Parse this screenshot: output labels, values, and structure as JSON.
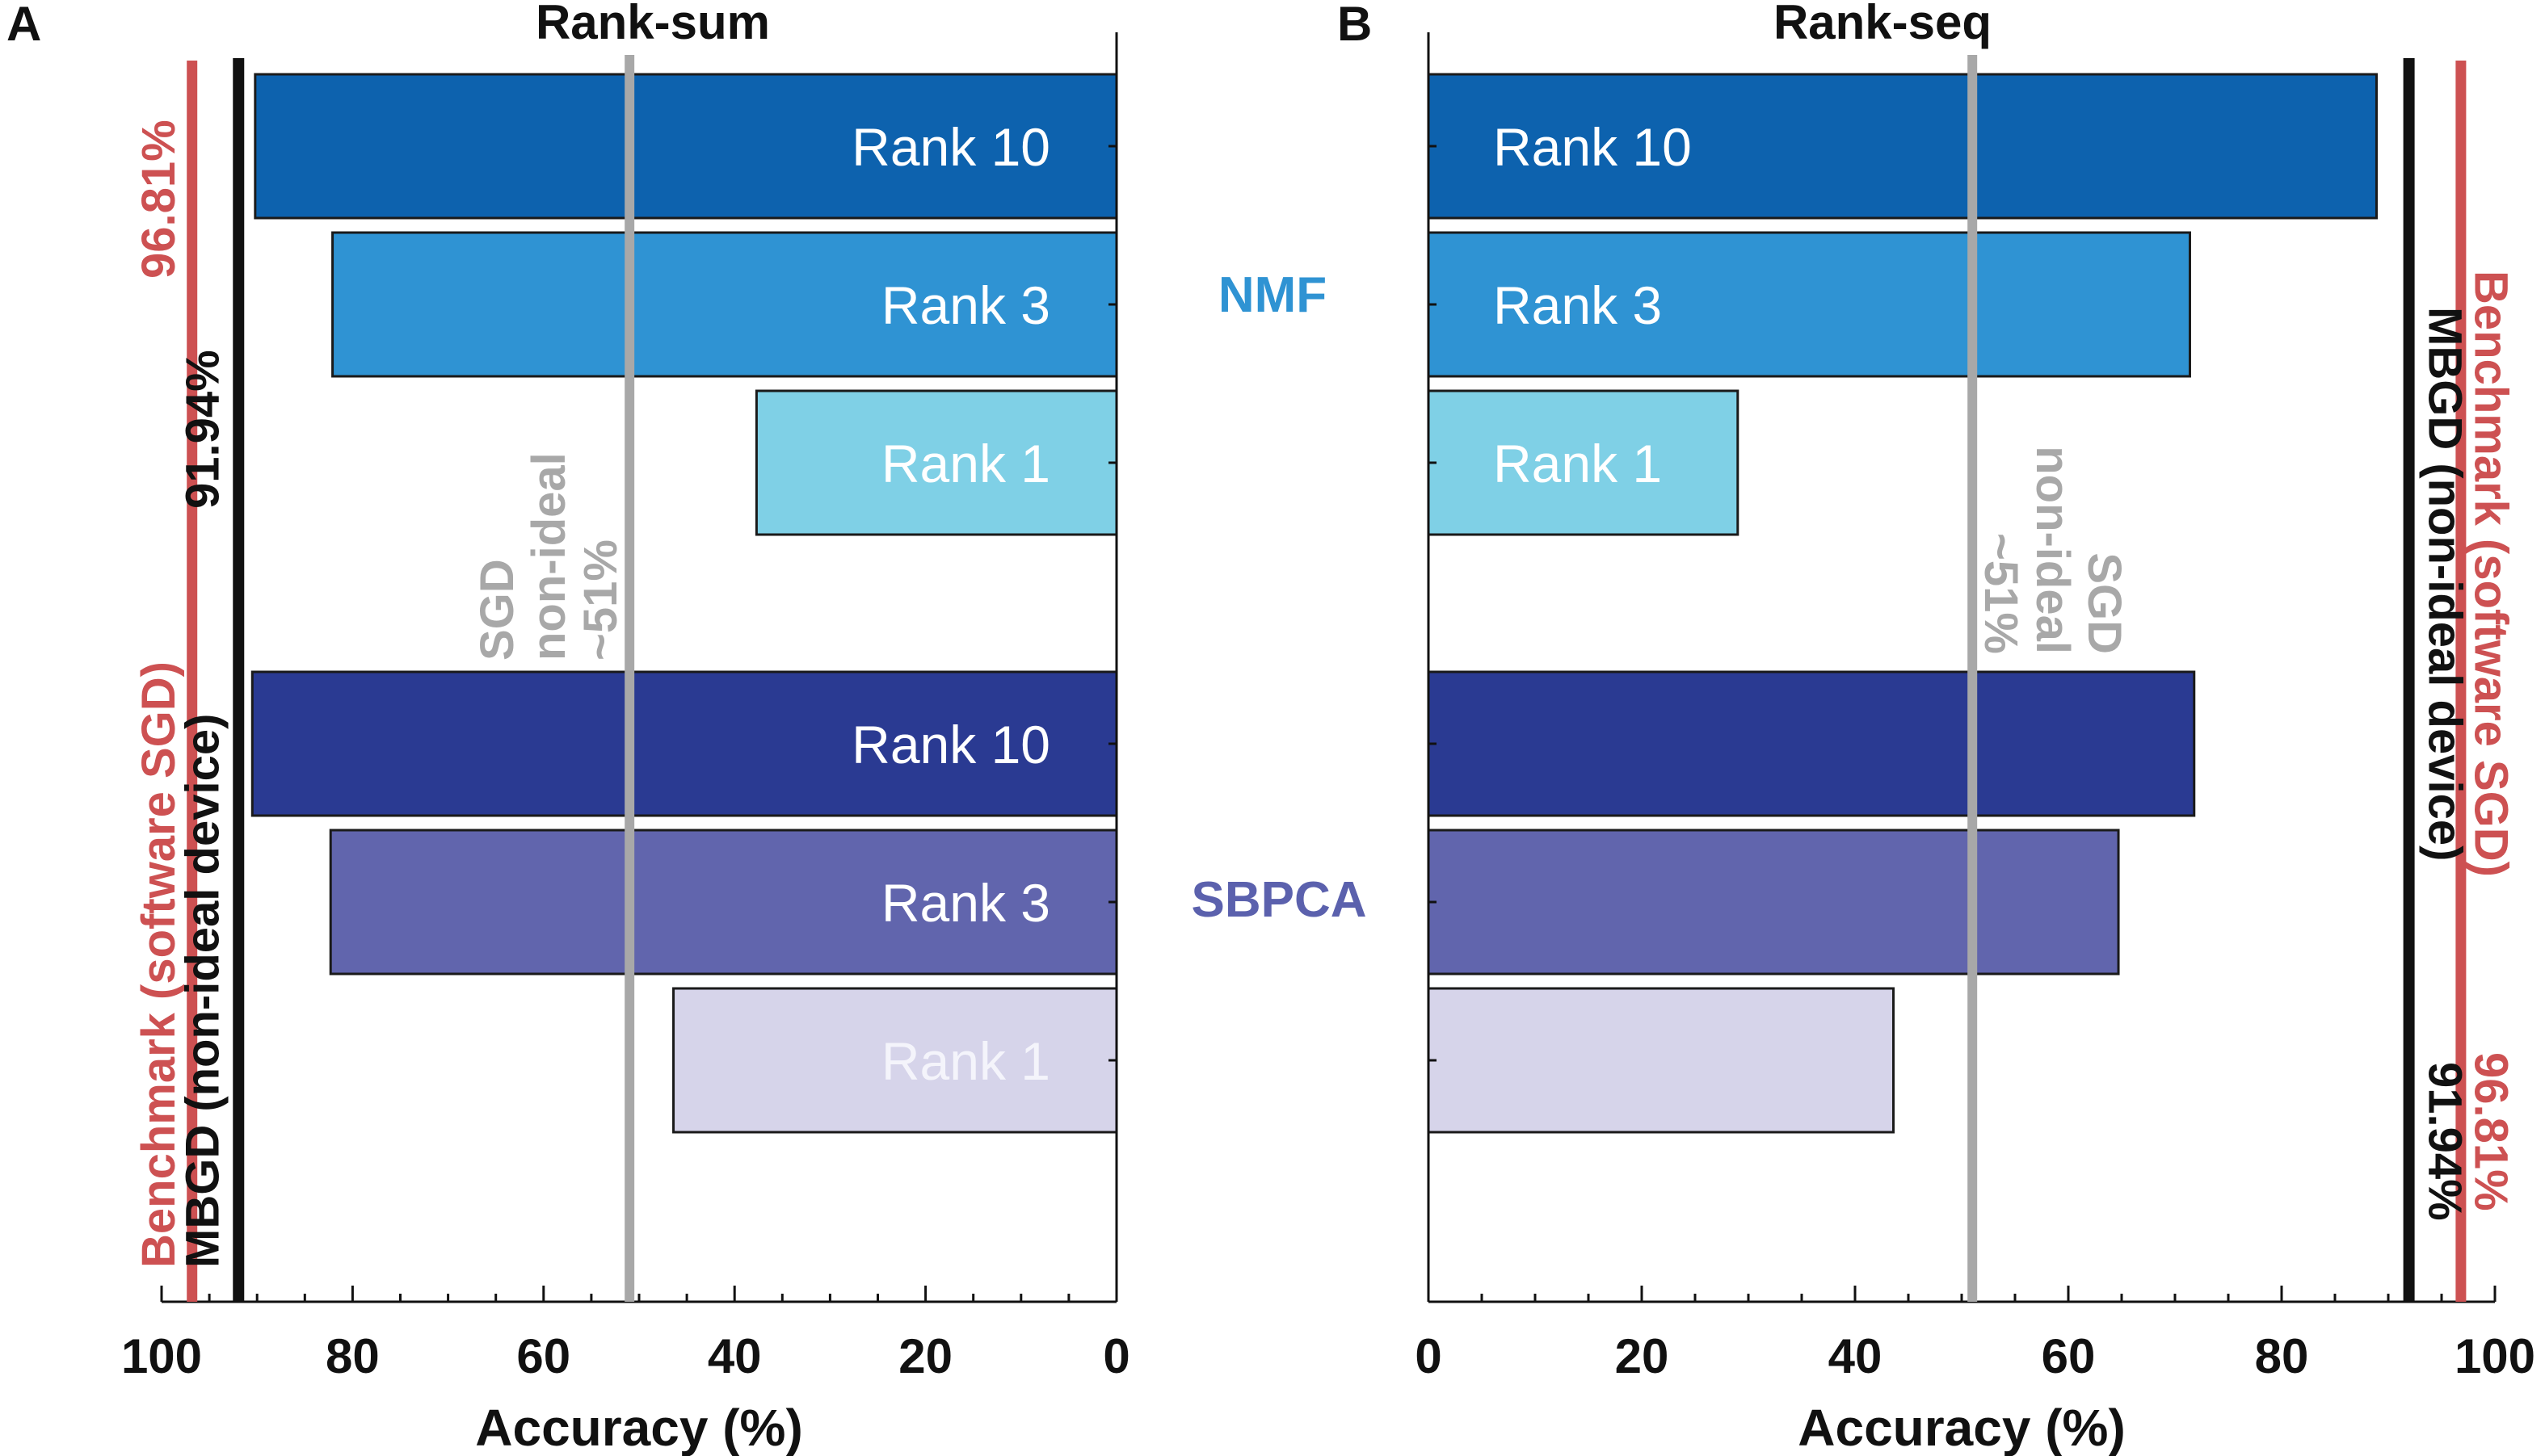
{
  "chart_data": [
    {
      "panel": "A",
      "title": "Rank-sum",
      "type": "bar",
      "orientation": "horizontal",
      "x_direction": "reversed",
      "xlabel": "Accuracy (%)",
      "xlim": [
        0,
        100
      ],
      "xticks": [
        "100",
        "80",
        "60",
        "40",
        "20",
        "0"
      ],
      "bars": [
        {
          "label": "Rank 10",
          "value": 90.2,
          "color": "#0d62ae",
          "text_color": "#ffffff"
        },
        {
          "label": "Rank 3",
          "value": 82.1,
          "color": "#2f93d3",
          "text_color": "#ffffff"
        },
        {
          "label": "Rank 1",
          "value": 37.7,
          "color": "#7fd0e6",
          "text_color": "#ffffff"
        },
        {
          "label": "Rank 10",
          "value": 90.5,
          "color": "#2a3a92",
          "text_color": "#ffffff"
        },
        {
          "label": "Rank 3",
          "value": 82.3,
          "color": "#6165ad",
          "text_color": "#ffffff"
        },
        {
          "label": "Rank 1",
          "value": 46.4,
          "color": "#d6d4ea",
          "text_color": "#f4f4fb"
        }
      ],
      "reference_lines": [
        {
          "value": 96.81,
          "color": "#cd5152",
          "text": "Benchmark (software SGD)",
          "value_text": "96.81%"
        },
        {
          "value": 91.94,
          "color": "#111111",
          "text": "MBGD (non-ideal device)",
          "value_text": "91.94%"
        },
        {
          "value": 51,
          "color": "#a8a8a8",
          "lines": [
            "SGD",
            "non-ideal",
            "~51%"
          ]
        }
      ]
    },
    {
      "panel": "B",
      "title": "Rank-seq",
      "type": "bar",
      "orientation": "horizontal",
      "x_direction": "normal",
      "xlabel": "Accuracy (%)",
      "xlim": [
        0,
        100
      ],
      "xticks": [
        "0",
        "20",
        "40",
        "60",
        "80",
        "100"
      ],
      "bars": [
        {
          "label": "Rank 10",
          "value": 88.9,
          "color": "#0d62ae",
          "text_color": "#ffffff"
        },
        {
          "label": "Rank 3",
          "value": 71.4,
          "color": "#2f93d3",
          "text_color": "#ffffff"
        },
        {
          "label": "Rank 1",
          "value": 29.0,
          "color": "#7fd0e6",
          "text_color": "#ffffff"
        },
        {
          "label": "",
          "value": 71.8,
          "color": "#2a3a92",
          "text_color": "#ffffff"
        },
        {
          "label": "",
          "value": 64.7,
          "color": "#6165ad",
          "text_color": "#ffffff"
        },
        {
          "label": "",
          "value": 43.6,
          "color": "#d6d4ea",
          "text_color": "#ffffff"
        }
      ],
      "reference_lines": [
        {
          "value": 96.81,
          "color": "#cd5152",
          "text": "Benchmark (software SGD)",
          "value_text": "96.81%"
        },
        {
          "value": 91.94,
          "color": "#111111",
          "text": "MBGD (non-ideal device)",
          "value_text": "91.94%"
        },
        {
          "value": 51,
          "color": "#a8a8a8",
          "lines": [
            "SGD",
            "non-ideal",
            "~51%"
          ]
        }
      ]
    }
  ],
  "group_labels": [
    {
      "text": "NMF",
      "color": "#2f93d3"
    },
    {
      "text": "SBPCA",
      "color": "#5b61ad"
    }
  ]
}
